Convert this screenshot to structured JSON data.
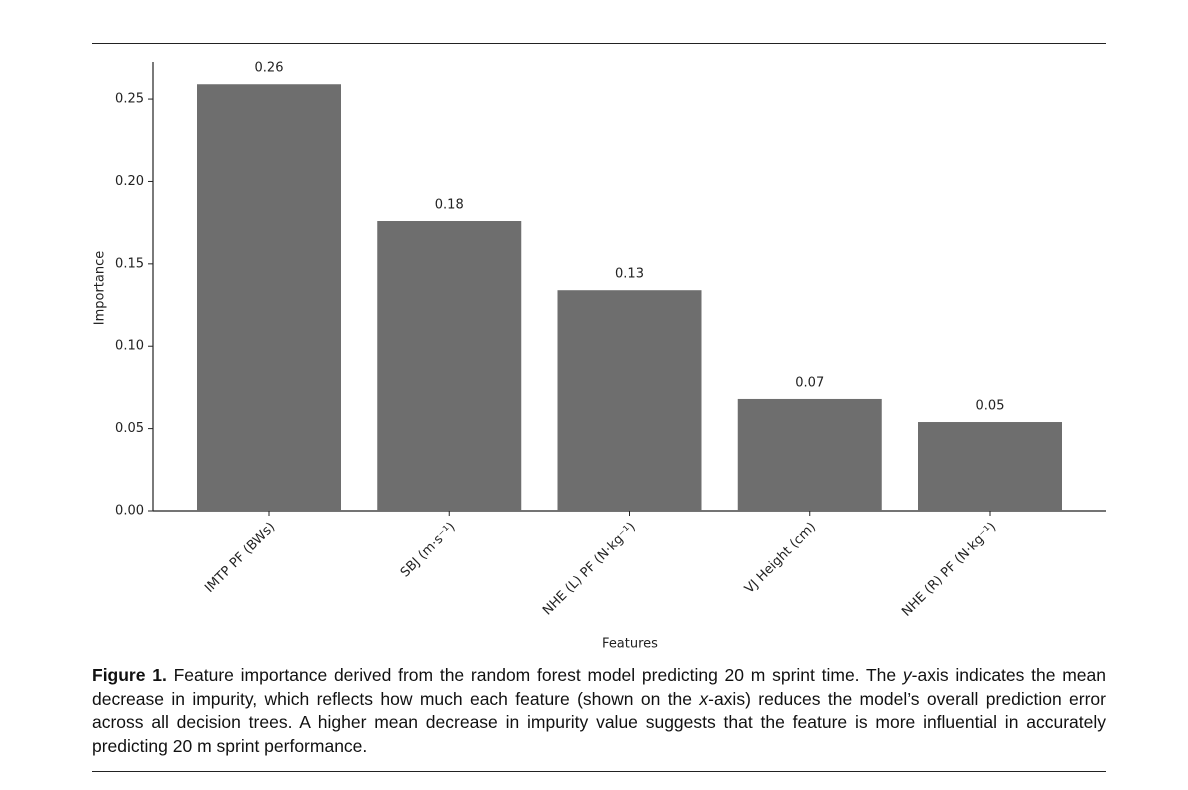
{
  "chart_data": {
    "type": "bar",
    "categories": [
      "IMTP PF (BWs)",
      "SBJ (m·s⁻¹)",
      "NHE (L) PF (N·kg⁻¹)",
      "VJ Height (cm)",
      "NHE (R) PF (N·kg⁻¹)"
    ],
    "values": [
      0.259,
      0.176,
      0.134,
      0.068,
      0.054
    ],
    "value_labels": [
      "0.26",
      "0.18",
      "0.13",
      "0.07",
      "0.05"
    ],
    "color": "#6e6e6e",
    "x_label": "Features",
    "y_label": "Importance",
    "ylim": [
      0,
      0.2725
    ],
    "yticks": [
      {
        "value": 0,
        "label": "0.00"
      },
      0.05,
      {
        "value": 0.1,
        "label": "0.10"
      },
      0.15,
      {
        "value": 0.2,
        "label": "0.20"
      },
      0.25
    ],
    "grid": false
  },
  "caption": {
    "label": "Figure 1.",
    "parts": [
      " Feature importance derived from the random forest model predicting 20 m sprint time. The ",
      "y",
      "-axis indicates the mean decrease in impurity, which reflects how much each feature (shown on the ",
      "x",
      "-axis) reduces the model’s overall prediction error across all decision trees. A higher mean decrease in impurity value suggests that the feature is more influential in accurately predicting 20 m sprint performance."
    ]
  }
}
